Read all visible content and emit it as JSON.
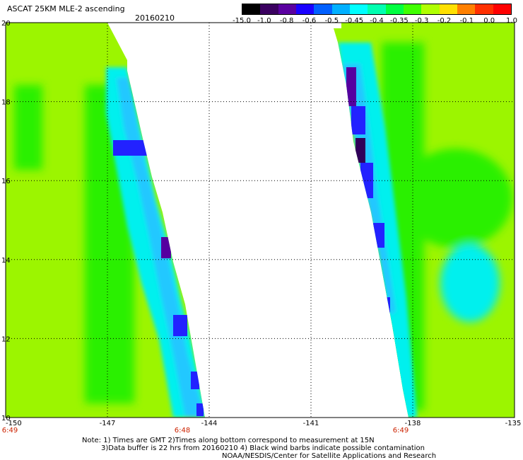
{
  "header": {
    "title": "ASCAT 25KM MLE-2 ascending",
    "date": "20160210"
  },
  "colorbar": {
    "labels": [
      "-15.0",
      "-1.0",
      "-0.8",
      "-0.6",
      "-0.5",
      "-0.45",
      "-0.4",
      "-0.35",
      "-0.3",
      "-0.2",
      "-0.1",
      "0.0",
      "1.0"
    ],
    "colors": [
      "#000000",
      "#3a0060",
      "#5a00a0",
      "#1a00ff",
      "#0060ff",
      "#00b0ff",
      "#00ffff",
      "#00ffb0",
      "#00ff40",
      "#40ff00",
      "#b0ff00",
      "#ffe000",
      "#ff8000",
      "#ff3000",
      "#ff0000"
    ]
  },
  "map": {
    "lon_labels": [
      "-150",
      "-147",
      "-144",
      "-141",
      "-138",
      "-135"
    ],
    "lat_labels": [
      "20",
      "18",
      "16",
      "14",
      "12",
      "10"
    ],
    "time_labels": [
      "6:49",
      "6:48",
      "6:49"
    ],
    "field_colors": {
      "background": "#9cf500",
      "green": "#2bf000",
      "cyan": "#00f0ee",
      "light_blue": "#20c8ff",
      "blue": "#2222ff",
      "purple": "#5500a0",
      "dark": "#30005a"
    }
  },
  "notes": {
    "line1": "Note: 1) Times are GMT 2)Times along bottom correspond to measurement at 15N",
    "line2": "3)Data buffer is 22 hrs from 20160210 4) Black wind barbs indicate possible contamination",
    "line3": "NOAA/NESDIS/Center for Satellite Applications and Research"
  }
}
